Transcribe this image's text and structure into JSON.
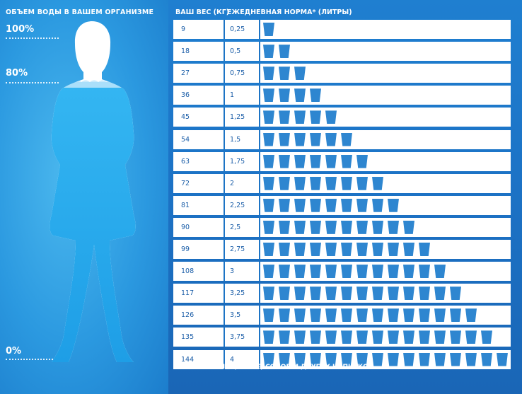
{
  "left_title": "ОБЪЕМ ВОДЫ В ВАШЕМ ОРГАНИЗМЕ",
  "percent_labels": [
    "100%",
    "80%",
    "0%"
  ],
  "header": {
    "weight": "ВАШ ВЕС (КГ)",
    "norm": "ЕЖЕДНЕВНАЯ НОРМА* (ЛИТРЫ)"
  },
  "footnote": "*БЕЗ УЧЕТА ЧАЯ, КОФЕ, СОКОВ И ДРУГИХ НАПИТКОВ",
  "colors": {
    "background": "#1c73c6",
    "cup": "#2e86d0",
    "figure": "#29a9ec",
    "row": "#ffffff"
  },
  "chart_data": {
    "type": "table",
    "columns": [
      "ВАШ ВЕС (КГ)",
      "ЕЖЕДНЕВНАЯ НОРМА* (ЛИТРЫ)"
    ],
    "rows": [
      {
        "weight": "9",
        "liters": "0,25",
        "cups": 1
      },
      {
        "weight": "18",
        "liters": "0,5",
        "cups": 2
      },
      {
        "weight": "27",
        "liters": "0,75",
        "cups": 3
      },
      {
        "weight": "36",
        "liters": "1",
        "cups": 4
      },
      {
        "weight": "45",
        "liters": "1,25",
        "cups": 5
      },
      {
        "weight": "54",
        "liters": "1,5",
        "cups": 6
      },
      {
        "weight": "63",
        "liters": "1,75",
        "cups": 7
      },
      {
        "weight": "72",
        "liters": "2",
        "cups": 8
      },
      {
        "weight": "81",
        "liters": "2,25",
        "cups": 9
      },
      {
        "weight": "90",
        "liters": "2,5",
        "cups": 10
      },
      {
        "weight": "99",
        "liters": "2,75",
        "cups": 11
      },
      {
        "weight": "108",
        "liters": "3",
        "cups": 12
      },
      {
        "weight": "117",
        "liters": "3,25",
        "cups": 13
      },
      {
        "weight": "126",
        "liters": "3,5",
        "cups": 14
      },
      {
        "weight": "135",
        "liters": "3,75",
        "cups": 15
      },
      {
        "weight": "144",
        "liters": "4",
        "cups": 16
      }
    ],
    "body_water_level": 0.8
  }
}
